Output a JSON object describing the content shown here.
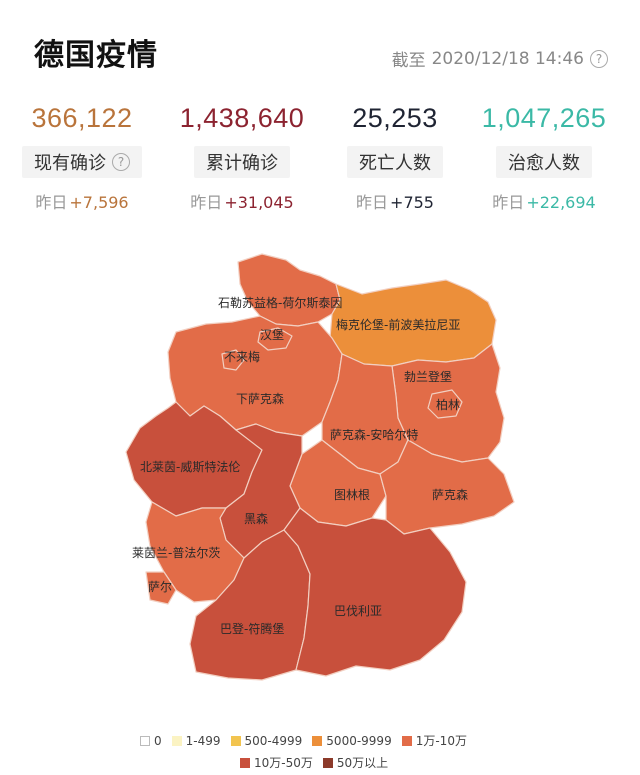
{
  "header": {
    "title": "德国疫情",
    "as_of_label": "截至",
    "as_of_time": "2020/12/18 14:46",
    "help_glyph": "?"
  },
  "stats": [
    {
      "value": "366,122",
      "label": "现有确诊",
      "delta_prefix": "昨日",
      "delta": "+7,596",
      "color": "#b9743b",
      "has_help": true
    },
    {
      "value": "1,438,640",
      "label": "累计确诊",
      "delta_prefix": "昨日",
      "delta": "+31,045",
      "color": "#8c2330",
      "has_help": false
    },
    {
      "value": "25,253",
      "label": "死亡人数",
      "delta_prefix": "昨日",
      "delta": "+755",
      "color": "#1f2433",
      "has_help": false
    },
    {
      "value": "1,047,265",
      "label": "治愈人数",
      "delta_prefix": "昨日",
      "delta": "+22,694",
      "color": "#3bb9a6",
      "has_help": false
    }
  ],
  "map": {
    "regions": [
      {
        "name": "石勒苏益格-荷尔斯泰因",
        "level": "1万-10万"
      },
      {
        "name": "梅克伦堡-前波美拉尼亚",
        "level": "5000-9999"
      },
      {
        "name": "汉堡",
        "level": "1万-10万"
      },
      {
        "name": "不来梅",
        "level": "1万-10万"
      },
      {
        "name": "下萨克森",
        "level": "1万-10万"
      },
      {
        "name": "勃兰登堡",
        "level": "1万-10万"
      },
      {
        "name": "柏林",
        "level": "1万-10万"
      },
      {
        "name": "萨克森-安哈尔特",
        "level": "1万-10万"
      },
      {
        "name": "北莱茵-威斯特法伦",
        "level": "10万-50万"
      },
      {
        "name": "图林根",
        "level": "1万-10万"
      },
      {
        "name": "萨克森",
        "level": "1万-10万"
      },
      {
        "name": "黑森",
        "level": "10万-50万"
      },
      {
        "name": "莱茵兰-普法尔茨",
        "level": "1万-10万"
      },
      {
        "name": "萨尔",
        "level": "1万-10万"
      },
      {
        "name": "巴登-符腾堡",
        "level": "10万-50万"
      },
      {
        "name": "巴伐利亚",
        "level": "10万-50万"
      }
    ]
  },
  "legend": [
    {
      "label": "0",
      "color": "#ffffff"
    },
    {
      "label": "1-499",
      "color": "#fbf3c3"
    },
    {
      "label": "500-4999",
      "color": "#f2c44f"
    },
    {
      "label": "5000-9999",
      "color": "#ec8f3a"
    },
    {
      "label": "1万-10万",
      "color": "#e26c48"
    },
    {
      "label": "10万-50万",
      "color": "#c8503c"
    },
    {
      "label": "50万以上",
      "color": "#8c3a2a"
    }
  ]
}
